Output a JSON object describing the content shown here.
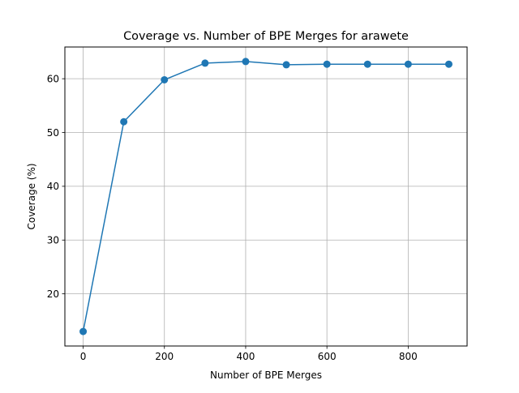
{
  "chart_data": {
    "type": "line",
    "title": "Coverage vs. Number of BPE Merges for arawete",
    "xlabel": "Number of BPE Merges",
    "ylabel": "Coverage (%)",
    "xlim": [
      -45,
      945
    ],
    "ylim": [
      10.3,
      65.9
    ],
    "xticks": [
      0,
      200,
      400,
      600,
      800
    ],
    "yticks": [
      20,
      30,
      40,
      50,
      60
    ],
    "grid": true,
    "marker": "circle",
    "line_color": "#1f77b4",
    "series": [
      {
        "x": [
          0,
          100,
          200,
          300,
          400,
          500,
          600,
          700,
          800,
          900
        ],
        "values": [
          13.0,
          52.0,
          59.8,
          62.9,
          63.2,
          62.6,
          62.7,
          62.7,
          62.7,
          62.7
        ]
      }
    ]
  }
}
